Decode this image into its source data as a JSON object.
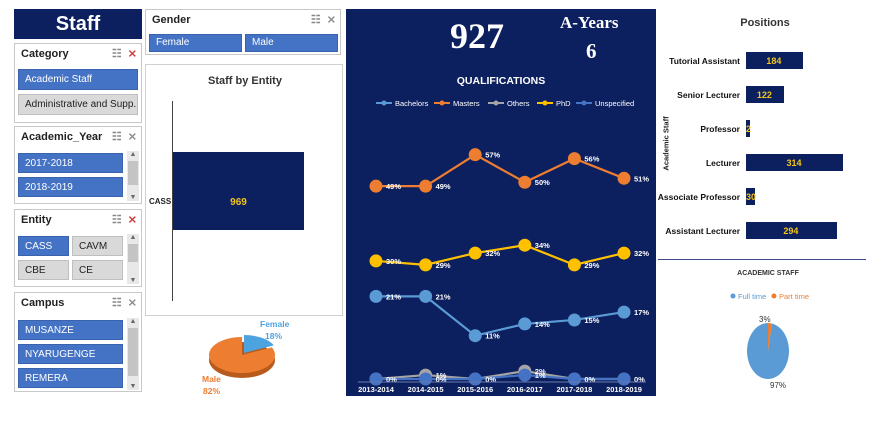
{
  "title": "Staff",
  "gender_slicer": {
    "title": "Gender",
    "items": [
      {
        "label": "Female",
        "selected": true
      },
      {
        "label": "Male",
        "selected": true
      }
    ]
  },
  "category_slicer": {
    "title": "Category",
    "items": [
      {
        "label": "Academic Staff",
        "selected": true
      },
      {
        "label": "Administrative and Supp...",
        "selected": false
      }
    ]
  },
  "year_slicer": {
    "title": "Academic_Year",
    "items": [
      {
        "label": "2017-2018"
      },
      {
        "label": "2018-2019"
      }
    ]
  },
  "entity_slicer": {
    "title": "Entity",
    "items": [
      {
        "label": "CASS",
        "selected": true
      },
      {
        "label": "CAVM",
        "selected": false
      },
      {
        "label": "CBE",
        "selected": false
      },
      {
        "label": "CE",
        "selected": false
      }
    ]
  },
  "campus_slicer": {
    "title": "Campus",
    "items": [
      {
        "label": "MUSANZE"
      },
      {
        "label": "NYARUGENGE"
      },
      {
        "label": "REMERA"
      }
    ]
  },
  "kpi": {
    "total": "927",
    "years_label": "A-Years",
    "years_value": "6"
  },
  "entity_chart": {
    "title": "Staff by Entity",
    "category": "CASS",
    "value": "969",
    "value_num": 969
  },
  "gender_pie": {
    "female_label": "Female",
    "female_pct": "18%",
    "male_label": "Male",
    "male_pct": "82%",
    "female_value": 18,
    "male_value": 82,
    "female_color": "#4da3e0",
    "male_color": "#ed7d31"
  },
  "chart_data": {
    "type": "line",
    "title": "QUALIFICATIONS",
    "categories": [
      "2013-2014",
      "2014-2015",
      "2015-2016",
      "2016-2017",
      "2017-2018",
      "2018-2019"
    ],
    "series": [
      {
        "name": "Bachelors",
        "color": "#5b9bd5",
        "values": [
          21,
          21,
          11,
          14,
          15,
          17
        ],
        "labels": [
          "21%",
          "21%",
          "11%",
          "14%",
          "15%",
          "17%"
        ]
      },
      {
        "name": "Masters",
        "color": "#ed7d31",
        "values": [
          49,
          49,
          57,
          50,
          56,
          51
        ],
        "labels": [
          "49%",
          "49%",
          "57%",
          "50%",
          "56%",
          "51%"
        ]
      },
      {
        "name": "Others",
        "color": "#a5a5a5",
        "values": [
          0,
          1,
          0,
          2,
          0,
          0
        ],
        "labels": [
          "",
          "1%",
          "0%",
          "2%",
          "",
          ""
        ]
      },
      {
        "name": "PhD",
        "color": "#ffc000",
        "values": [
          30,
          29,
          32,
          34,
          29,
          32
        ],
        "labels": [
          "30%",
          "29%",
          "32%",
          "34%",
          "29%",
          "32%"
        ]
      },
      {
        "name": "Unspecified",
        "color": "#4472c4",
        "values": [
          0,
          0,
          0,
          1,
          0,
          0
        ],
        "labels": [
          "0%",
          "0%",
          "",
          "1%",
          "0%",
          "0%"
        ]
      }
    ],
    "ylim": [
      0,
      62
    ],
    "legend": "top"
  },
  "positions": {
    "title": "Positions",
    "axis_label": "Academic Staff",
    "items": [
      {
        "label": "Tutorial Assistant",
        "value": 184,
        "text": "184"
      },
      {
        "label": "Senior Lecturer",
        "value": 122,
        "text": "122"
      },
      {
        "label": "Professor",
        "value": 2,
        "text": "2"
      },
      {
        "label": "Lecturer",
        "value": 314,
        "text": "314"
      },
      {
        "label": "Associate Professor",
        "value": 30,
        "text": "30"
      },
      {
        "label": "Assistant Lecturer",
        "value": 294,
        "text": "294"
      }
    ]
  },
  "academic_pie": {
    "title": "ACADEMIC STAFF",
    "full_label": "Full time",
    "part_label": "Part time",
    "full_pct": "97%",
    "part_pct": "3%",
    "full_value": 97,
    "part_value": 3,
    "full_color": "#5b9bd5",
    "part_color": "#ed7d31"
  }
}
